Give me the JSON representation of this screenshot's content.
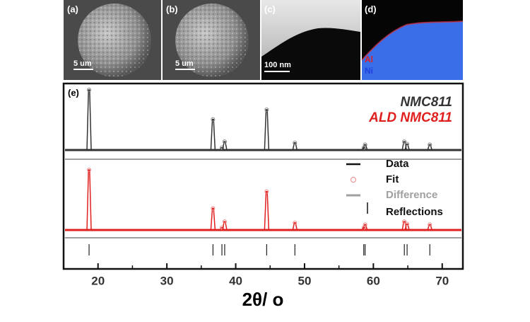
{
  "panels": [
    {
      "label": "(a)",
      "scale": "5 um"
    },
    {
      "label": "(b)",
      "scale": "5 um"
    },
    {
      "label": "(c)",
      "scale": "100 nm"
    },
    {
      "label": "(d)",
      "elements": [
        {
          "name": "Al",
          "color": "#e0201e"
        },
        {
          "name": "Ni",
          "color": "#2040e0"
        }
      ]
    }
  ],
  "chart_data": {
    "type": "xrd",
    "label": "(e)",
    "xlabel": "2θ/ o",
    "xlim": [
      15,
      73
    ],
    "xticks": [
      20,
      30,
      40,
      50,
      60,
      70
    ],
    "xminorticks": [
      15,
      25,
      35,
      45,
      55,
      65
    ],
    "ylim": [
      0,
      100
    ],
    "reflections": [
      18.7,
      36.7,
      38.0,
      38.4,
      44.5,
      48.6,
      58.6,
      58.8,
      64.5,
      64.9,
      68.2
    ],
    "series": [
      {
        "name": "NMC811",
        "color": "#333333",
        "values": [
          100,
          51,
          4,
          14,
          67,
          12,
          4,
          9,
          14,
          10,
          9
        ]
      },
      {
        "name": "ALD NMC811",
        "color": "#e0201e",
        "values": [
          100,
          36,
          4,
          14,
          64,
          12,
          4,
          9,
          14,
          10,
          9
        ]
      }
    ],
    "legend": [
      "Data",
      "Fit",
      "Difference",
      "Reflections"
    ],
    "difference_color": "#a0a0a0"
  }
}
